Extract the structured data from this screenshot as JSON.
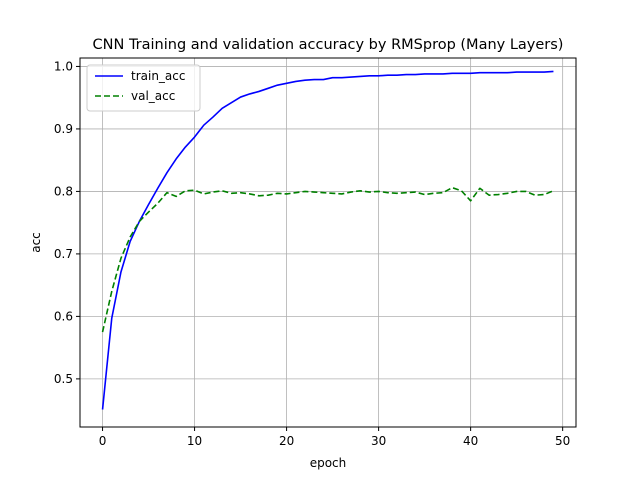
{
  "chart_data": {
    "type": "line",
    "title": "CNN Training and validation accuracy by RMSprop (Many Layers)",
    "xlabel": "epoch",
    "ylabel": "acc",
    "xlim": [
      -2.45,
      51.45
    ],
    "ylim": [
      0.423,
      1.0135
    ],
    "xticks": [
      0,
      10,
      20,
      30,
      40,
      50
    ],
    "yticks": [
      0.5,
      0.6,
      0.7,
      0.8,
      0.9,
      1.0
    ],
    "grid": true,
    "legend_position": "upper-left",
    "series": [
      {
        "name": "train_acc",
        "color": "#0000ff",
        "style": "solid",
        "x": [
          0,
          1,
          2,
          3,
          4,
          5,
          6,
          7,
          8,
          9,
          10,
          11,
          12,
          13,
          14,
          15,
          16,
          17,
          18,
          19,
          20,
          21,
          22,
          23,
          24,
          25,
          26,
          27,
          28,
          29,
          30,
          31,
          32,
          33,
          34,
          35,
          36,
          37,
          38,
          39,
          40,
          41,
          42,
          43,
          44,
          45,
          46,
          47,
          48,
          49
        ],
        "values": [
          0.451,
          0.597,
          0.671,
          0.72,
          0.752,
          0.779,
          0.805,
          0.83,
          0.852,
          0.871,
          0.887,
          0.906,
          0.919,
          0.933,
          0.942,
          0.951,
          0.956,
          0.96,
          0.965,
          0.97,
          0.973,
          0.976,
          0.978,
          0.979,
          0.979,
          0.982,
          0.982,
          0.983,
          0.984,
          0.985,
          0.985,
          0.986,
          0.986,
          0.987,
          0.987,
          0.988,
          0.988,
          0.988,
          0.989,
          0.989,
          0.989,
          0.99,
          0.99,
          0.99,
          0.99,
          0.991,
          0.991,
          0.991,
          0.991,
          0.992
        ]
      },
      {
        "name": "val_acc",
        "color": "#008000",
        "style": "dashed",
        "x": [
          0,
          1,
          2,
          3,
          4,
          5,
          6,
          7,
          8,
          9,
          10,
          11,
          12,
          13,
          14,
          15,
          16,
          17,
          18,
          19,
          20,
          21,
          22,
          23,
          24,
          25,
          26,
          27,
          28,
          29,
          30,
          31,
          32,
          33,
          34,
          35,
          36,
          37,
          38,
          39,
          40,
          41,
          42,
          43,
          44,
          45,
          46,
          47,
          48,
          49
        ],
        "values": [
          0.575,
          0.64,
          0.693,
          0.727,
          0.752,
          0.767,
          0.781,
          0.798,
          0.792,
          0.801,
          0.802,
          0.796,
          0.799,
          0.801,
          0.797,
          0.798,
          0.796,
          0.793,
          0.794,
          0.797,
          0.796,
          0.798,
          0.8,
          0.799,
          0.798,
          0.797,
          0.796,
          0.799,
          0.801,
          0.799,
          0.8,
          0.798,
          0.797,
          0.798,
          0.799,
          0.795,
          0.797,
          0.798,
          0.806,
          0.801,
          0.785,
          0.805,
          0.794,
          0.795,
          0.797,
          0.8,
          0.8,
          0.794,
          0.795,
          0.801
        ]
      }
    ]
  }
}
